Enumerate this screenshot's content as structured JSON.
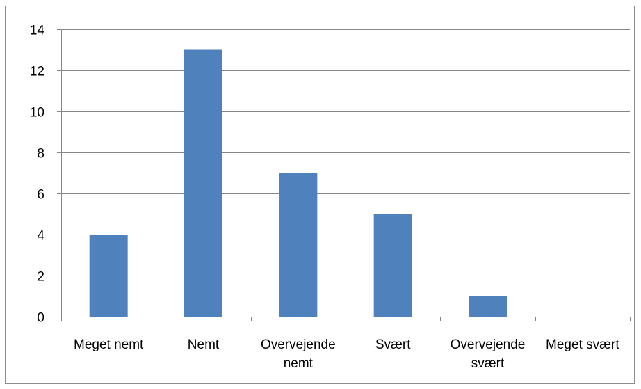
{
  "chart_data": {
    "type": "bar",
    "categories": [
      "Meget nemt",
      "Nemt",
      "Overvejende nemt",
      "Svært",
      "Overvejende svært",
      "Meget svært"
    ],
    "category_lines": [
      [
        "Meget nemt"
      ],
      [
        "Nemt"
      ],
      [
        "Overvejende",
        "nemt"
      ],
      [
        "Svært"
      ],
      [
        "Overvejende",
        "svært"
      ],
      [
        "Meget svært"
      ]
    ],
    "values": [
      4,
      13,
      7,
      5,
      1,
      0
    ],
    "ylim": [
      0,
      14
    ],
    "yticks": [
      0,
      2,
      4,
      6,
      8,
      10,
      12,
      14
    ],
    "grid": true,
    "legend": "none",
    "bar_color": "#4f81bd",
    "grid_color": "#868686"
  }
}
